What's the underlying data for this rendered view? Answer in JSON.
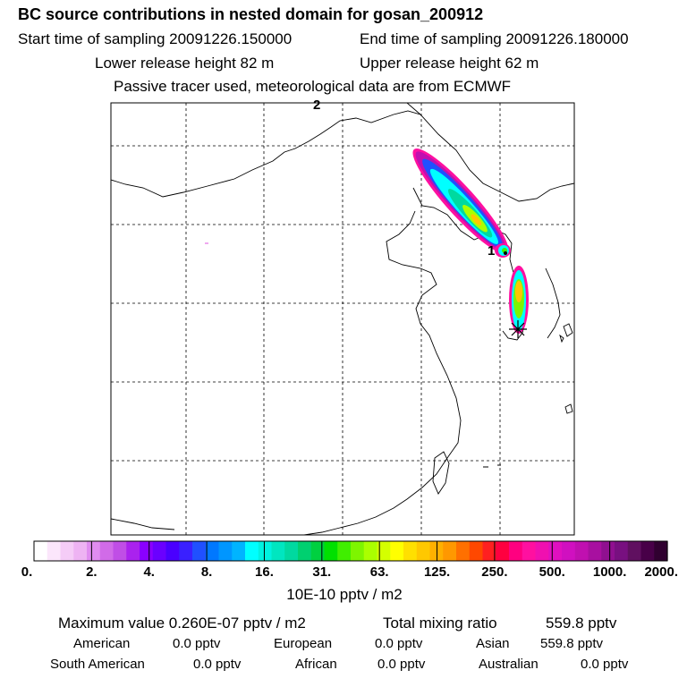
{
  "header": {
    "title": "BC  source contributions in nested domain for gosan_200912",
    "start_time": "Start time of sampling 20091226.150000",
    "end_time": "End time of sampling 20091226.180000",
    "lower_release": "Lower release height   82 m",
    "upper_release": "Upper release height   62 m",
    "passive_tracer": "Passive tracer used, meteorological data are from ECMWF"
  },
  "map": {
    "label_top": "2",
    "label_release": "1"
  },
  "chart_data": {
    "type": "heatmap",
    "title": "BC  source contributions in nested domain for gosan_200912",
    "colorbar": {
      "unit_label": "10E-10 pptv / m2",
      "tick_labels": [
        "0.",
        "2.",
        "4.",
        "8.",
        "16.",
        "31.",
        "63.",
        "125.",
        "250.",
        "500.",
        "1000.",
        "2000."
      ],
      "colors": [
        "#ffffff",
        "#fbe6fb",
        "#f5ccf7",
        "#eeb3f3",
        "#e08cf0",
        "#d16be8",
        "#c04ee6",
        "#aa22ee",
        "#8a00ff",
        "#6a00ff",
        "#4a00ff",
        "#3a20ff",
        "#2050ff",
        "#0078ff",
        "#0096ff",
        "#00b4ff",
        "#00ffff",
        "#00f2e0",
        "#00e6c0",
        "#00d9a0",
        "#00d070",
        "#00d040",
        "#00e000",
        "#40ee00",
        "#7ef500",
        "#aaff00",
        "#d4ff00",
        "#ffff00",
        "#ffe000",
        "#ffc800",
        "#ffb000",
        "#ff9800",
        "#ff7000",
        "#ff4800",
        "#ff2020",
        "#ff0040",
        "#ff0080",
        "#ff10a0",
        "#f010b0",
        "#e010c0",
        "#d010c0",
        "#c010b0",
        "#a810a0",
        "#901090",
        "#781080",
        "#601060",
        "#480048",
        "#300030"
      ]
    }
  },
  "stats": {
    "max_value": "Maximum value  0.260E-07 pptv / m2",
    "total_mixing": "Total mixing ratio",
    "total_mixing_value": "559.8 pptv",
    "american_label": "American",
    "american_value": "0.0 pptv",
    "european_label": "European",
    "european_value": "0.0 pptv",
    "asian_label": "Asian",
    "asian_value": "559.8 pptv",
    "south_american_label": "South American",
    "south_american_value": "0.0 pptv",
    "african_label": "African",
    "african_value": "0.0 pptv",
    "australian_label": "Australian",
    "australian_value": "0.0 pptv"
  }
}
